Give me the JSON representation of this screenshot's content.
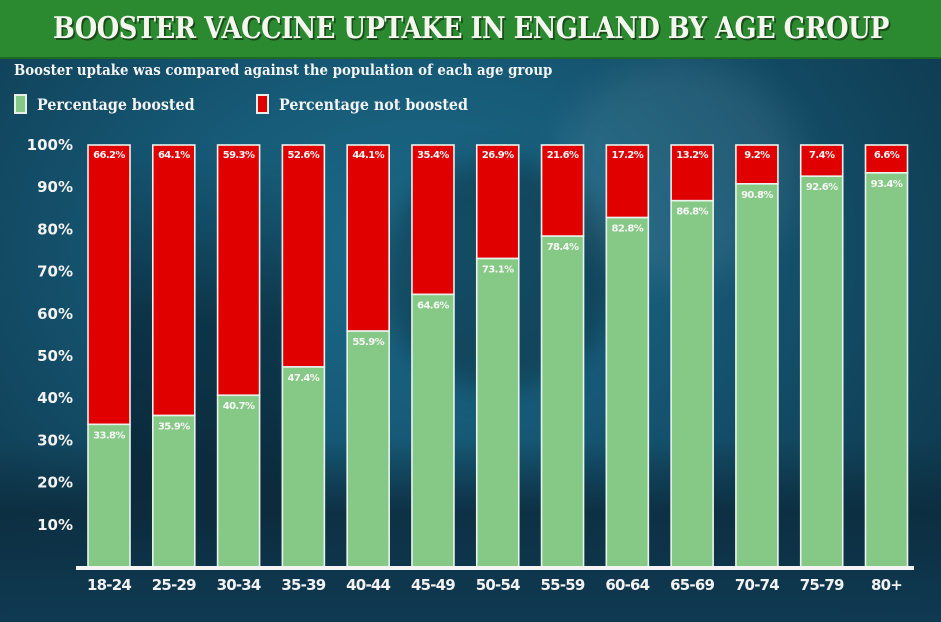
{
  "header": {
    "title": "BOOSTER VACCINE UPTAKE IN ENGLAND BY AGE GROUP",
    "subtitle": "Booster uptake was compared against the population of each age group"
  },
  "colors": {
    "banner": "#2b8a2f",
    "boosted": "#86c986",
    "not_boosted": "#e10000",
    "bar_outline": "#e9f3ee",
    "text": "#f2f2f2"
  },
  "legend": [
    {
      "label": "Percentage boosted",
      "color": "#86c986"
    },
    {
      "label": "Percentage not boosted",
      "color": "#e10000"
    }
  ],
  "chart_data": {
    "type": "bar",
    "stacked": true,
    "title": "BOOSTER VACCINE UPTAKE IN ENGLAND BY AGE GROUP",
    "subtitle": "Booster uptake was compared against the population of each age group",
    "xlabel": "",
    "ylabel": "",
    "ylim": [
      0,
      100
    ],
    "yticks": [
      "10%",
      "20%",
      "30%",
      "40%",
      "50%",
      "60%",
      "70%",
      "80%",
      "90%",
      "100%"
    ],
    "ytick_values": [
      10,
      20,
      30,
      40,
      50,
      60,
      70,
      80,
      90,
      100
    ],
    "grid": false,
    "legend_position": "top-left",
    "categories": [
      "18-24",
      "25-29",
      "30-34",
      "35-39",
      "40-44",
      "45-49",
      "50-54",
      "55-59",
      "60-64",
      "65-69",
      "70-74",
      "75-79",
      "80+"
    ],
    "series": [
      {
        "name": "Percentage boosted",
        "color": "#86c986",
        "values": [
          33.8,
          35.9,
          40.7,
          47.4,
          55.9,
          64.6,
          73.1,
          78.4,
          82.8,
          86.8,
          90.8,
          92.6,
          93.4
        ],
        "labels": [
          "33.8%",
          "35.9%",
          "40.7%",
          "47.4%",
          "55.9%",
          "64.6%",
          "73.1%",
          "78.4%",
          "82.8%",
          "86.8%",
          "90.8%",
          "92.6%",
          "93.4%"
        ]
      },
      {
        "name": "Percentage not boosted",
        "color": "#e10000",
        "values": [
          66.2,
          64.1,
          59.3,
          52.6,
          44.1,
          35.4,
          26.9,
          21.6,
          17.2,
          13.2,
          9.2,
          7.4,
          6.6
        ],
        "labels": [
          "66.2%",
          "64.1%",
          "59.3%",
          "52.6%",
          "44.1%",
          "35.4%",
          "26.9%",
          "21.6%",
          "17.2%",
          "13.2%",
          "9.2%",
          "7.4%",
          "6.6%"
        ]
      }
    ]
  }
}
